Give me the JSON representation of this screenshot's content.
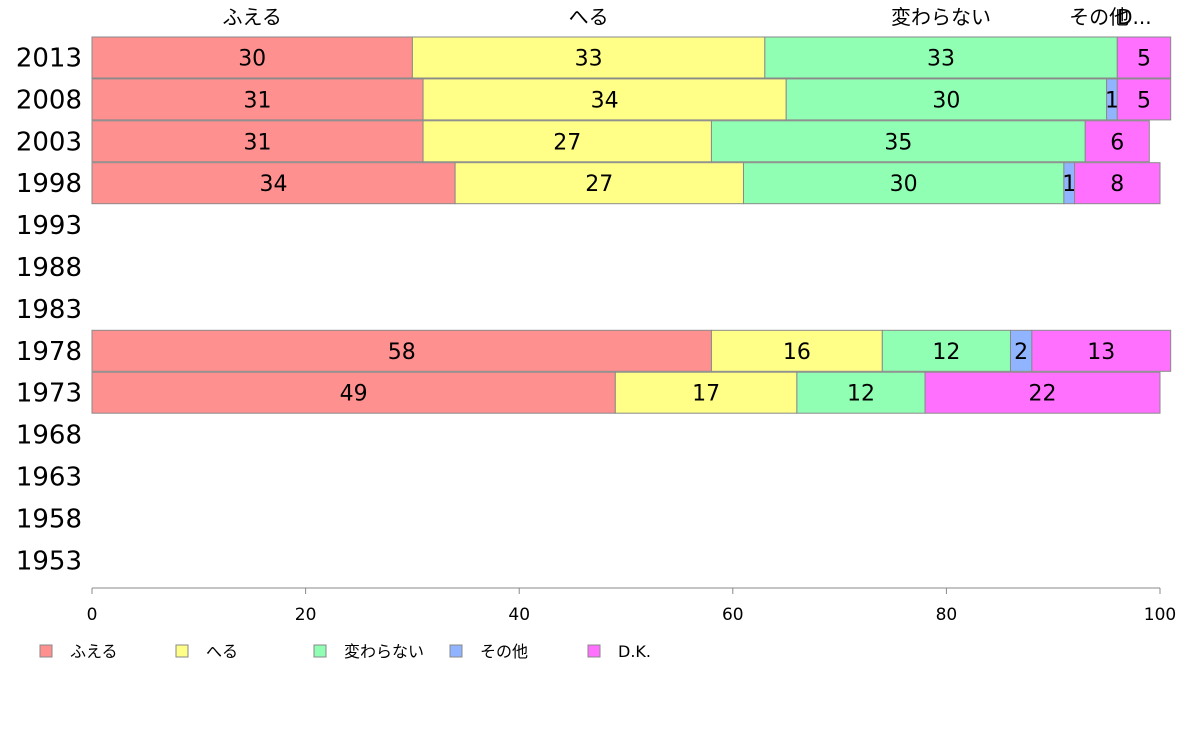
{
  "chart_data": {
    "type": "bar",
    "orientation": "horizontal",
    "stacked": true,
    "categories": [
      "2013",
      "2008",
      "2003",
      "1998",
      "1993",
      "1988",
      "1983",
      "1978",
      "1973",
      "1968",
      "1963",
      "1958",
      "1953"
    ],
    "series": [
      {
        "name": "ふえる",
        "color": "#ff9090",
        "values": [
          30,
          31,
          31,
          34,
          null,
          null,
          null,
          58,
          49,
          null,
          null,
          null,
          null
        ]
      },
      {
        "name": "へる",
        "color": "#ffff88",
        "values": [
          33,
          34,
          27,
          27,
          null,
          null,
          null,
          16,
          17,
          null,
          null,
          null,
          null
        ]
      },
      {
        "name": "変わらない",
        "color": "#90ffb4",
        "values": [
          33,
          30,
          35,
          30,
          null,
          null,
          null,
          12,
          12,
          null,
          null,
          null,
          null
        ]
      },
      {
        "name": "その他",
        "color": "#90b4ff",
        "values": [
          0,
          1,
          0,
          1,
          null,
          null,
          null,
          2,
          0,
          null,
          null,
          null,
          null
        ]
      },
      {
        "name": "D.K.",
        "color": "#ff70ff",
        "values": [
          5,
          5,
          6,
          8,
          null,
          null,
          null,
          13,
          22,
          null,
          null,
          null,
          null
        ]
      }
    ],
    "segment_labels": [
      [
        "30",
        "33",
        "33",
        "",
        "5"
      ],
      [
        "31",
        "34",
        "30",
        "1",
        "5"
      ],
      [
        "31",
        "27",
        "35",
        "",
        "6"
      ],
      [
        "34",
        "27",
        "30",
        "1",
        "8"
      ],
      [],
      [],
      [],
      [
        "58",
        "16",
        "12",
        "2",
        "13"
      ],
      [
        "49",
        "17",
        "12",
        "",
        "22"
      ],
      [],
      [],
      [],
      []
    ],
    "top_labels": [
      "ふえる",
      "へる",
      "変わらない",
      "その他",
      "D..."
    ],
    "xlim": [
      0,
      100
    ],
    "xticks": [
      "0",
      "20",
      "40",
      "60",
      "80",
      "100"
    ],
    "grid": false,
    "legend_position": "bottom-left"
  }
}
